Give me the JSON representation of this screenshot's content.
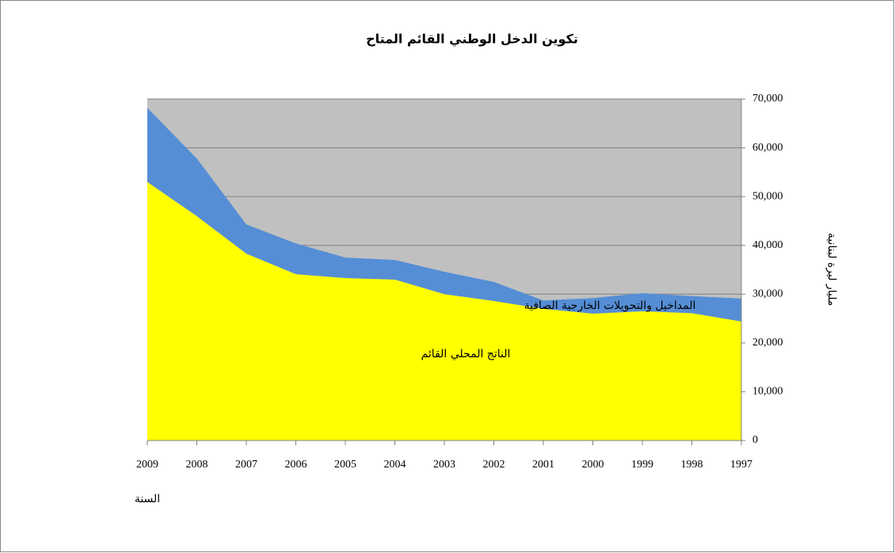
{
  "chart_data": {
    "type": "stacked_area",
    "title": "تكوين الدخل الوطني القائم المتاح",
    "x_label": "السنة",
    "y_label": "مليار ليرة لبنانية",
    "categories": [
      "2009",
      "2008",
      "2007",
      "2006",
      "2005",
      "2004",
      "2003",
      "2002",
      "2001",
      "2000",
      "1999",
      "1998",
      "1997"
    ],
    "series": [
      {
        "name": "الناتج المحلي القائم",
        "color": "#ffff00",
        "values": [
          53000,
          46000,
          38300,
          34100,
          33300,
          33000,
          30000,
          28600,
          27000,
          26000,
          26500,
          26100,
          24400
        ]
      },
      {
        "name": "المداخيل والتحويلات الخارجية الصافية",
        "color": "#558ed5",
        "values": [
          15200,
          11800,
          6000,
          6300,
          4200,
          4000,
          4600,
          3900,
          1700,
          3200,
          3700,
          3500,
          4700
        ]
      }
    ],
    "ylim": [
      0,
      70000
    ],
    "yticks": [
      0,
      {
        "value": 10000,
        "label": "10,000"
      },
      {
        "value": 20000,
        "label": "20,000"
      },
      {
        "value": 30000,
        "label": "30,000"
      },
      {
        "value": 40000,
        "label": "40,000"
      },
      {
        "value": 50000,
        "label": "50,000"
      },
      {
        "value": 60000,
        "label": "60,000"
      },
      {
        "value": 70000,
        "label": "70,000"
      }
    ],
    "grid": true,
    "plot_background": "#c0c0c0"
  }
}
